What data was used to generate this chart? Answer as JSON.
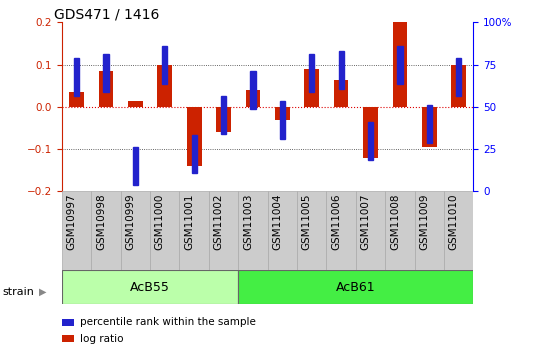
{
  "title": "GDS471 / 1416",
  "samples": [
    "GSM10997",
    "GSM10998",
    "GSM10999",
    "GSM11000",
    "GSM11001",
    "GSM11002",
    "GSM11003",
    "GSM11004",
    "GSM11005",
    "GSM11006",
    "GSM11007",
    "GSM11008",
    "GSM11009",
    "GSM11010"
  ],
  "log_ratio": [
    0.035,
    0.085,
    0.013,
    0.1,
    -0.14,
    -0.06,
    0.04,
    -0.03,
    0.09,
    0.063,
    -0.12,
    0.2,
    -0.095,
    0.1
  ],
  "percentile_rank": [
    68,
    70,
    15,
    75,
    22,
    45,
    60,
    42,
    70,
    72,
    30,
    75,
    40,
    68
  ],
  "ylim": [
    -0.2,
    0.2
  ],
  "y2lim": [
    0,
    100
  ],
  "yticks": [
    -0.2,
    -0.1,
    0.0,
    0.1,
    0.2
  ],
  "y2ticks": [
    0,
    25,
    50,
    75,
    100
  ],
  "hlines": [
    0.1,
    0.0,
    -0.1
  ],
  "bar_color": "#cc2200",
  "pct_color": "#2222cc",
  "bg_color": "#ffffff",
  "strain_groups": [
    {
      "label": "AcB55",
      "start": 0,
      "end": 6,
      "color": "#bbffaa"
    },
    {
      "label": "AcB61",
      "start": 6,
      "end": 14,
      "color": "#44ee44"
    }
  ],
  "strain_label": "strain",
  "legend_items": [
    {
      "label": "log ratio",
      "color": "#cc2200"
    },
    {
      "label": "percentile rank within the sample",
      "color": "#2222cc"
    }
  ],
  "bar_width": 0.5,
  "pct_marker_size": 0.18,
  "title_fontsize": 10,
  "tick_fontsize": 7.5,
  "label_fontsize": 8
}
